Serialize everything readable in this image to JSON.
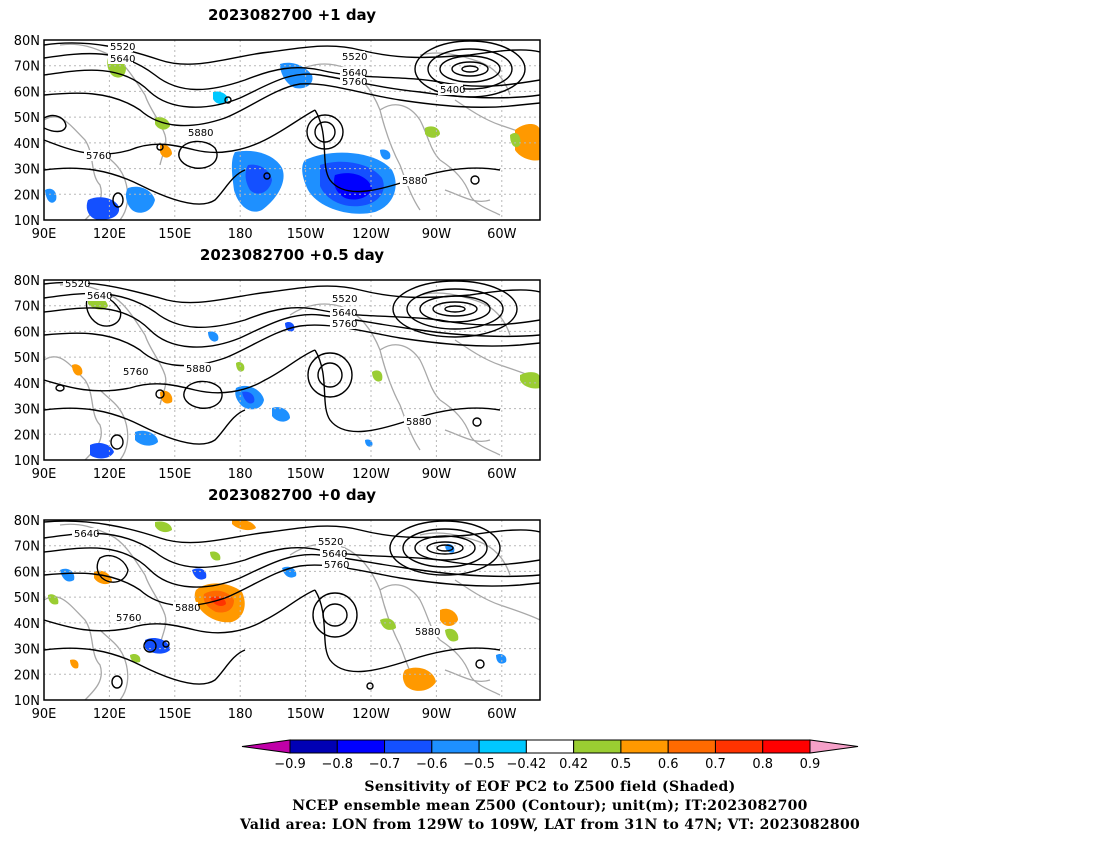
{
  "panels": [
    {
      "title": "2023082700  +1  day",
      "contour_labels": [
        "5520",
        "5640",
        "5520",
        "5640",
        "5760",
        "5400",
        "5880",
        "5760",
        "5880"
      ]
    },
    {
      "title": "2023082700  +0.5  day",
      "contour_labels": [
        "5520",
        "5640",
        "5520",
        "5640",
        "5760",
        "5760",
        "5880",
        "5880"
      ]
    },
    {
      "title": "2023082700  +0  day",
      "contour_labels": [
        "5640",
        "5520",
        "5640",
        "5760",
        "5760",
        "5880",
        "5880"
      ]
    }
  ],
  "axes": {
    "lat_ticks": [
      "80N",
      "70N",
      "60N",
      "50N",
      "40N",
      "30N",
      "20N",
      "10N"
    ],
    "lon_ticks": [
      "90E",
      "120E",
      "150E",
      "180",
      "150W",
      "120W",
      "90W",
      "60W"
    ]
  },
  "colorbar": {
    "labels": [
      "−0.9",
      "−0.8",
      "−0.7",
      "−0.6",
      "−0.5",
      "−0.42",
      "0.42",
      "0.5",
      "0.6",
      "0.7",
      "0.8",
      "0.9"
    ],
    "under_color": "#c000a8",
    "over_color": "#f5a0c8",
    "bin_colors": [
      "#0000b4",
      "#0000ff",
      "#1450ff",
      "#1e90ff",
      "#00c8ff",
      "#ffffff",
      "#9acd32",
      "#ff9900",
      "#ff6a00",
      "#ff3300",
      "#ff0000"
    ]
  },
  "caption": {
    "line1": "Sensitivity of EOF PC2 to Z500 field (Shaded)",
    "line2": "NCEP ensemble mean Z500 (Contour); unit(m); IT:2023082700",
    "line3": "Valid area: LON from 129W to 109W, LAT from 31N to 47N; VT: 2023082800"
  }
}
